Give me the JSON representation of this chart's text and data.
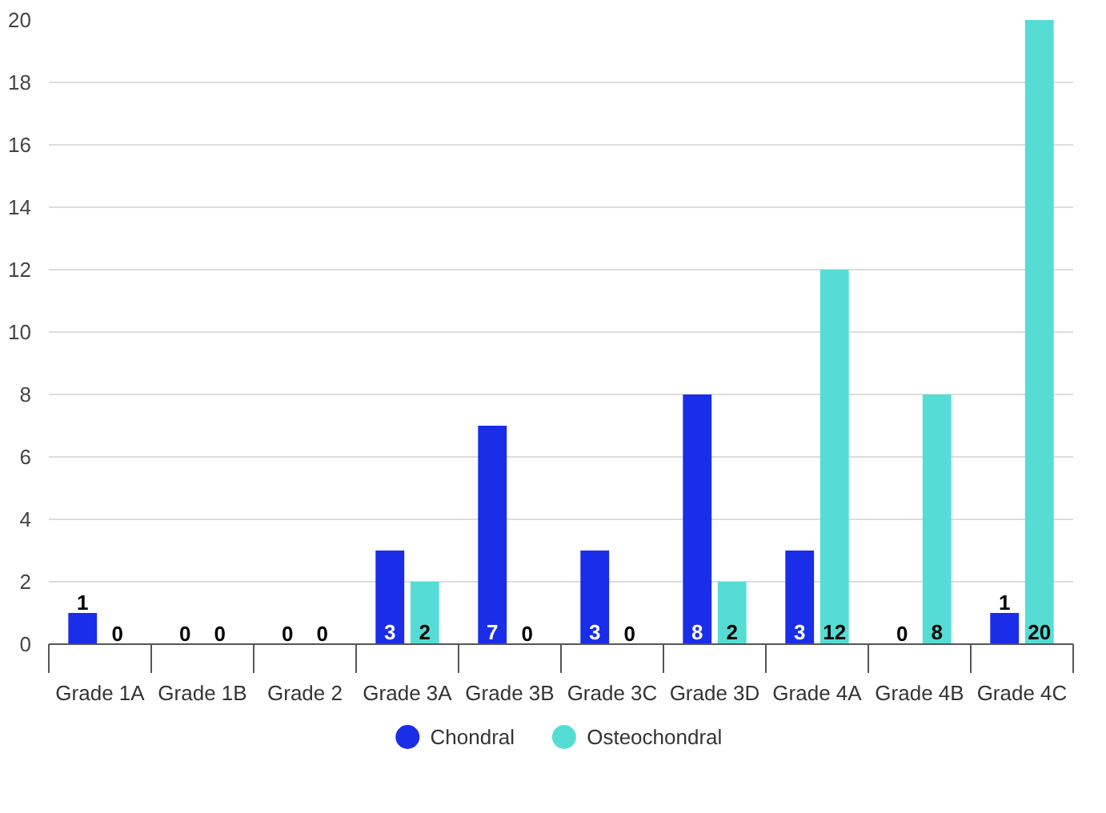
{
  "chart_data": {
    "type": "bar",
    "categories": [
      "Grade 1A",
      "Grade 1B",
      "Grade 2",
      "Grade 3A",
      "Grade 3B",
      "Grade 3C",
      "Grade 3D",
      "Grade 4A",
      "Grade 4B",
      "Grade 4C"
    ],
    "series": [
      {
        "name": "Chondral",
        "color": "#1a2de8",
        "values": [
          1,
          0,
          0,
          3,
          7,
          3,
          8,
          3,
          0,
          1
        ]
      },
      {
        "name": "Osteochondral",
        "color": "#55ddd5",
        "values": [
          0,
          0,
          0,
          2,
          0,
          0,
          2,
          12,
          8,
          20
        ]
      }
    ],
    "ylim": [
      0,
      20
    ],
    "yticks": [
      0,
      2,
      4,
      6,
      8,
      10,
      12,
      14,
      16,
      18,
      20
    ],
    "grid": "y",
    "legend": "bottom",
    "data_labels": true
  }
}
